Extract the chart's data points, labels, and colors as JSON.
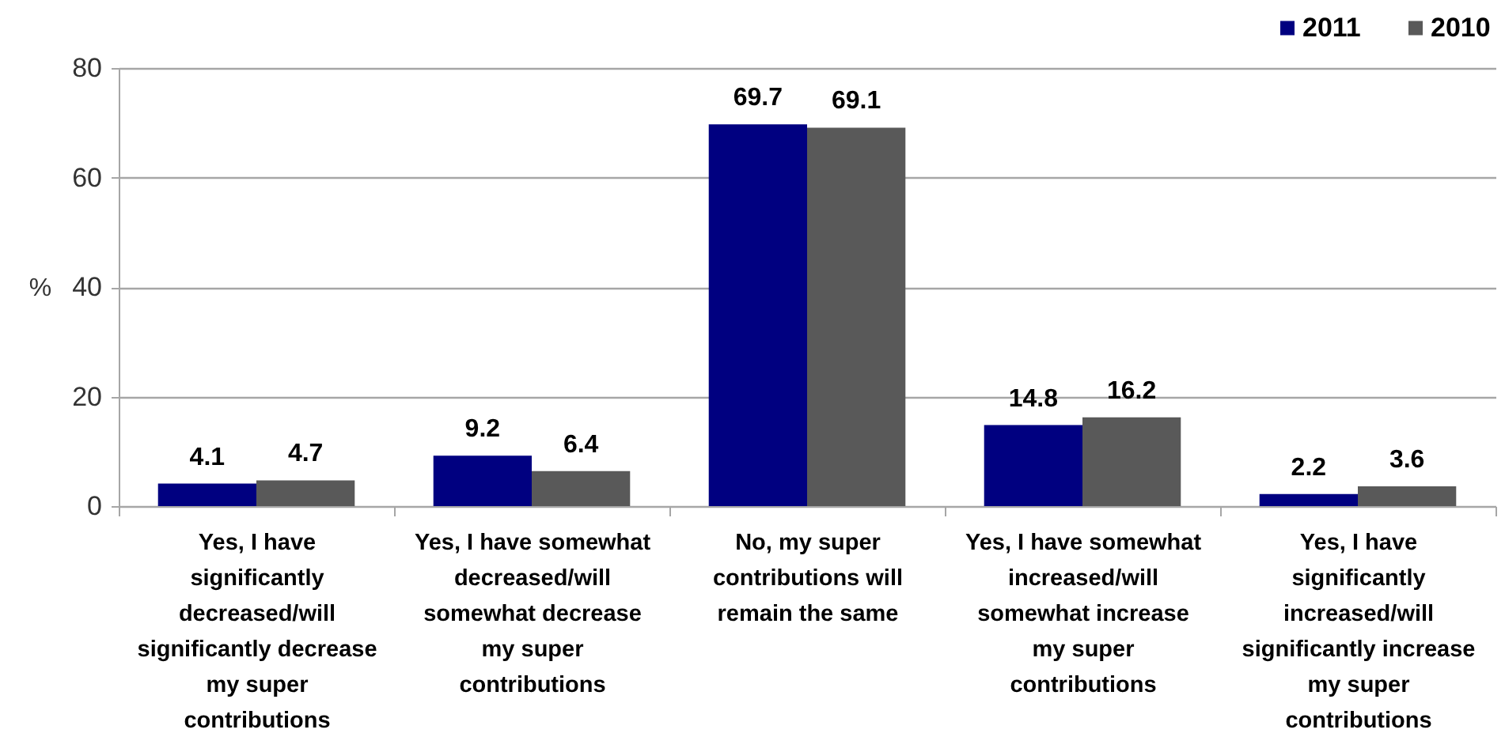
{
  "chart_data": {
    "type": "bar",
    "categories": [
      "Yes, I have\nsignificantly\ndecreased/will\nsignificantly decrease\nmy super\ncontributions",
      "Yes, I have somewhat\ndecreased/will\nsomewhat decrease\nmy super\ncontributions",
      "No, my super\ncontributions will\nremain the same",
      "Yes, I have somewhat\nincreased/will\nsomewhat increase\nmy super\ncontributions",
      "Yes, I have\nsignificantly\nincreased/will\nsignificantly increase\nmy super\ncontributions"
    ],
    "series": [
      {
        "name": "2011",
        "color": "#000080",
        "values": [
          4.1,
          9.2,
          69.7,
          14.8,
          2.2
        ]
      },
      {
        "name": "2010",
        "color": "#595959",
        "values": [
          4.7,
          6.4,
          69.1,
          16.2,
          3.6
        ]
      }
    ],
    "ylabel": "%",
    "ylim": [
      0,
      80
    ],
    "yticks": [
      0,
      20,
      40,
      60,
      80
    ],
    "grid": true,
    "legend": "top right",
    "data_labels": true
  }
}
